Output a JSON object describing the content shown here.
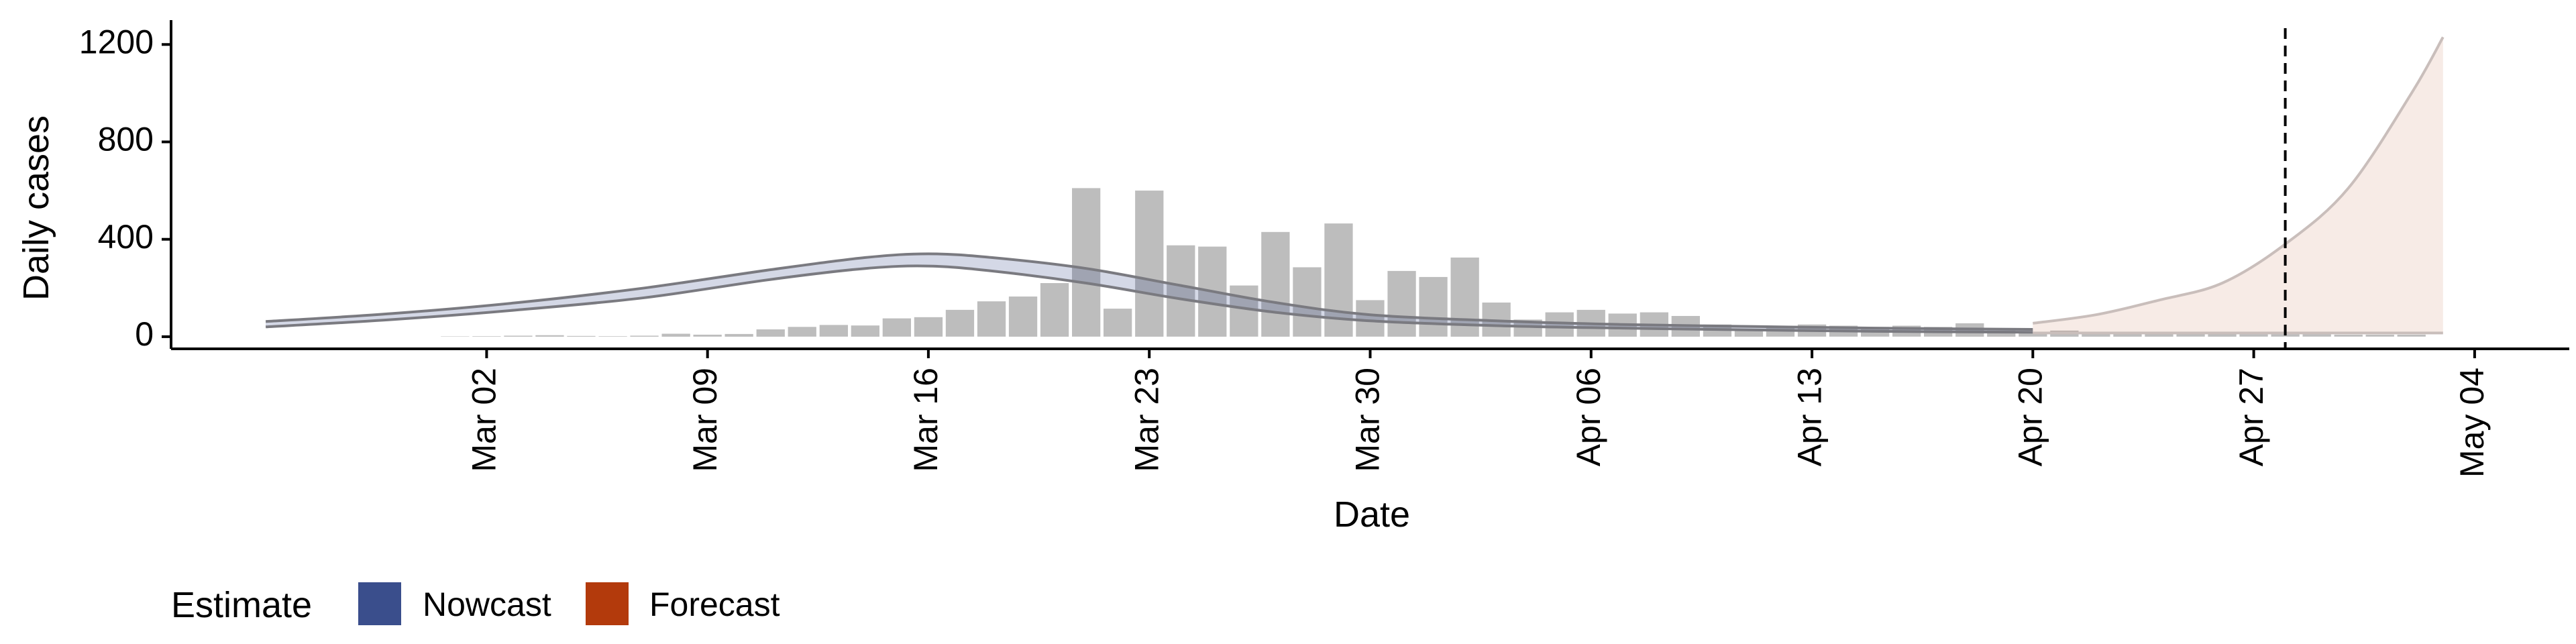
{
  "chart_data": {
    "type": "bar",
    "xlabel": "Date",
    "ylabel": "Daily cases",
    "ylim": [
      -50,
      1300
    ],
    "y_ticks": [
      0,
      400,
      800,
      1200
    ],
    "x_range": [
      "2020-02-21",
      "2020-05-07"
    ],
    "x_ticks": [
      {
        "date": "2020-03-02",
        "label": "Mar 02"
      },
      {
        "date": "2020-03-09",
        "label": "Mar 09"
      },
      {
        "date": "2020-03-16",
        "label": "Mar 16"
      },
      {
        "date": "2020-03-23",
        "label": "Mar 23"
      },
      {
        "date": "2020-03-30",
        "label": "Mar 30"
      },
      {
        "date": "2020-04-06",
        "label": "Apr 06"
      },
      {
        "date": "2020-04-13",
        "label": "Apr 13"
      },
      {
        "date": "2020-04-20",
        "label": "Apr 20"
      },
      {
        "date": "2020-04-27",
        "label": "Apr 27"
      },
      {
        "date": "2020-05-04",
        "label": "May 04"
      }
    ],
    "grid": false,
    "forecast_cutoff_date": "2020-04-28",
    "observed_cases": {
      "start_date": "2020-03-01",
      "values": [
        1,
        2,
        4,
        6,
        3,
        2,
        4,
        12,
        8,
        11,
        30,
        40,
        48,
        46,
        75,
        80,
        110,
        145,
        165,
        220,
        610,
        115,
        600,
        375,
        370,
        210,
        430,
        285,
        465,
        150,
        270,
        245,
        325,
        140,
        70,
        100,
        110,
        95,
        100,
        85,
        50,
        30,
        40,
        50,
        45,
        40,
        45,
        40,
        55,
        25,
        15,
        25,
        12,
        12,
        20,
        15,
        12,
        10,
        10,
        10,
        8,
        8,
        8
      ]
    },
    "series": [
      {
        "name": "Nowcast",
        "color": "#3A4E8C",
        "dates": [
          "2020-02-24",
          "2020-02-28",
          "2020-03-03",
          "2020-03-07",
          "2020-03-11",
          "2020-03-14",
          "2020-03-16",
          "2020-03-18",
          "2020-03-21",
          "2020-03-24",
          "2020-03-27",
          "2020-03-30",
          "2020-04-03",
          "2020-04-07",
          "2020-04-11",
          "2020-04-15",
          "2020-04-20"
        ],
        "upper": [
          62,
          95,
          140,
          200,
          275,
          325,
          340,
          325,
          280,
          210,
          140,
          90,
          65,
          50,
          42,
          35,
          30
        ],
        "lower": [
          40,
          70,
          110,
          160,
          235,
          280,
          290,
          270,
          220,
          155,
          100,
          65,
          45,
          35,
          28,
          22,
          18
        ]
      },
      {
        "name": "Forecast",
        "color": "#B33A0C",
        "dates": [
          "2020-04-20",
          "2020-04-22",
          "2020-04-24",
          "2020-04-26",
          "2020-04-28",
          "2020-04-30",
          "2020-05-02",
          "2020-05-03"
        ],
        "upper": [
          55,
          90,
          150,
          220,
          380,
          610,
          1000,
          1230
        ],
        "lower": [
          15,
          15,
          15,
          15,
          15,
          15,
          15,
          15
        ]
      }
    ],
    "legend": {
      "position": "bottom-left",
      "title": "Estimate",
      "entries": [
        {
          "label": "Nowcast",
          "color": "#3A4E8C"
        },
        {
          "label": "Forecast",
          "color": "#B33A0C"
        }
      ]
    },
    "colors": {
      "bar": "#BDBDBD",
      "nowcast_band": "#3A4E8C",
      "forecast_band": "#B33A0C",
      "band_edge": "#7A7A80",
      "cutoff_line": "#000000"
    }
  }
}
